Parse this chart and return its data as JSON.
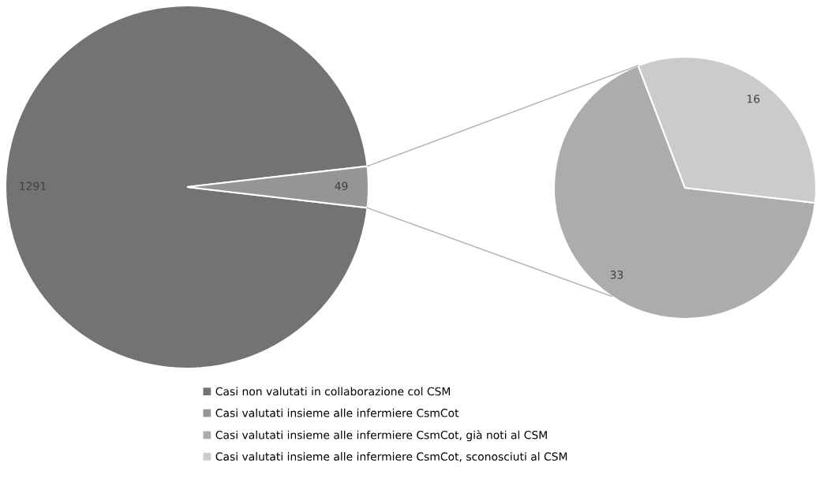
{
  "chart_data": [
    {
      "type": "pie",
      "categories": [
        "Casi non valutati in collaborazione col CSM",
        "Casi valutati insieme alle infermiere CsmCot"
      ],
      "values": [
        1291,
        49
      ],
      "colors": [
        "#737373",
        "#959595"
      ],
      "data_labels": true,
      "legend": "bottom"
    },
    {
      "type": "pie",
      "categories": [
        "Casi valutati insieme alle infermiere CsmCot, già noti al CSM",
        "Casi valutati insieme alle infermiere CsmCot, sconosciuti al CSM"
      ],
      "values": [
        33,
        16
      ],
      "colors": [
        "#acacac",
        "#cbcbcb"
      ],
      "data_labels": true,
      "legend": "bottom"
    }
  ]
}
